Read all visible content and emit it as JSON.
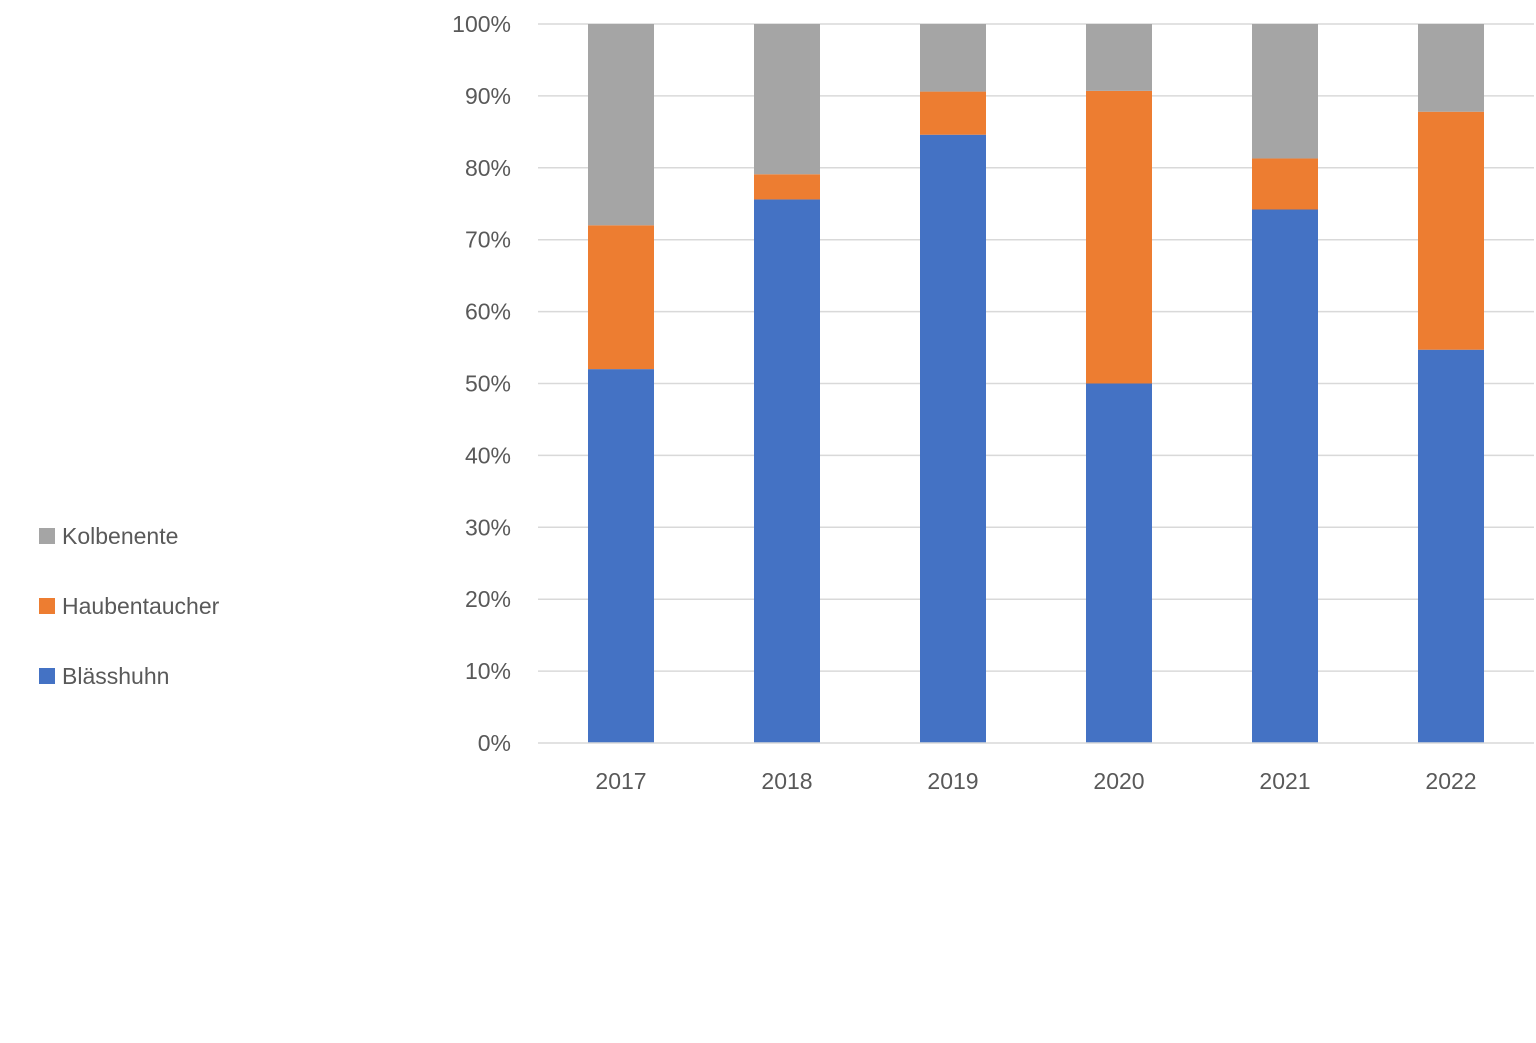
{
  "chart_data": {
    "type": "bar",
    "stacked": true,
    "percent_stacked": true,
    "categories": [
      "2017",
      "2018",
      "2019",
      "2020",
      "2021",
      "2022"
    ],
    "series": [
      {
        "name": "Blässhuhn",
        "color": "#4472C4",
        "values": [
          52.0,
          75.6,
          84.6,
          50.0,
          74.2,
          54.7
        ]
      },
      {
        "name": "Haubentaucher",
        "color": "#ED7D31",
        "values": [
          20.0,
          3.5,
          6.0,
          40.7,
          7.1,
          33.1
        ]
      },
      {
        "name": "Kolbenente",
        "color": "#A5A5A5",
        "values": [
          28.0,
          20.9,
          9.4,
          9.3,
          18.7,
          12.2
        ]
      }
    ],
    "y_ticks": [
      "0%",
      "10%",
      "20%",
      "30%",
      "40%",
      "50%",
      "60%",
      "70%",
      "80%",
      "90%",
      "100%"
    ],
    "ylim": [
      0,
      100
    ],
    "grid": true,
    "legend_position": "left",
    "legend_order": [
      "Kolbenente",
      "Haubentaucher",
      "Blässhuhn"
    ]
  }
}
